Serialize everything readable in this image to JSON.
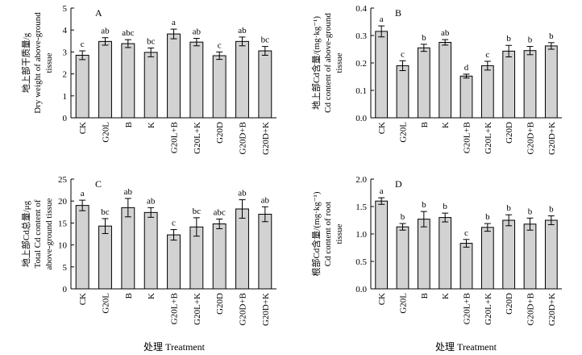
{
  "chart_data": [
    {
      "type": "bar",
      "panel": "A",
      "categories": [
        "CK",
        "G20L",
        "B",
        "K",
        "G20L+B",
        "G20L+K",
        "G20D",
        "G20D+B",
        "G20D+K"
      ],
      "values": [
        2.85,
        3.48,
        3.38,
        2.98,
        3.82,
        3.45,
        2.83,
        3.48,
        3.05
      ],
      "errors": [
        0.2,
        0.17,
        0.18,
        0.2,
        0.22,
        0.17,
        0.17,
        0.2,
        0.2
      ],
      "significance": [
        "c",
        "ab",
        "abc",
        "bc",
        "a",
        "ab",
        "c",
        "ab",
        "bc"
      ],
      "ylabel_lines": [
        "地上部干质量/g",
        "Dry weight of above-ground",
        "tissue"
      ],
      "xlabel": "",
      "ylim": [
        0,
        5
      ],
      "yticks": [
        0,
        1,
        2,
        3,
        4,
        5
      ]
    },
    {
      "type": "bar",
      "panel": "B",
      "categories": [
        "CK",
        "G20L",
        "B",
        "K",
        "G20L+B",
        "G20L+K",
        "G20D",
        "G20D+B",
        "G20D+K"
      ],
      "values": [
        0.315,
        0.19,
        0.255,
        0.275,
        0.152,
        0.19,
        0.243,
        0.245,
        0.262
      ],
      "errors": [
        0.02,
        0.018,
        0.013,
        0.01,
        0.007,
        0.016,
        0.021,
        0.015,
        0.012
      ],
      "significance": [
        "a",
        "c",
        "b",
        "ab",
        "d",
        "c",
        "b",
        "b",
        "b"
      ],
      "ylabel_lines": [
        "地上部Cd含量/(mg·kg⁻¹)",
        "Cd content of above-ground",
        "tissue"
      ],
      "xlabel": "",
      "ylim": [
        0,
        0.4
      ],
      "yticks": [
        0,
        0.1,
        0.2,
        0.3,
        0.4
      ]
    },
    {
      "type": "bar",
      "panel": "C",
      "categories": [
        "CK",
        "G20L",
        "B",
        "K",
        "G20L+B",
        "G20L+K",
        "G20D",
        "G20D+B",
        "G20D+K"
      ],
      "values": [
        19.0,
        14.3,
        18.5,
        17.4,
        12.3,
        14.1,
        14.8,
        18.2,
        17.0
      ],
      "errors": [
        1.2,
        1.7,
        2.1,
        1.1,
        1.2,
        2.1,
        1.1,
        2.1,
        1.7
      ],
      "significance": [
        "a",
        "bc",
        "ab",
        "ab",
        "c",
        "bc",
        "abc",
        "ab",
        "ab"
      ],
      "ylabel_lines": [
        "地上部Cd总量/μg",
        "Total Cd content of",
        "above-ground tissue"
      ],
      "xlabel": "处理 Treatment",
      "ylim": [
        0,
        25
      ],
      "yticks": [
        0,
        5,
        10,
        15,
        20,
        25
      ]
    },
    {
      "type": "bar",
      "panel": "D",
      "categories": [
        "CK",
        "G20L",
        "B",
        "K",
        "G20L+B",
        "G20L+K",
        "G20D",
        "G20D+B",
        "G20D+K"
      ],
      "values": [
        1.6,
        1.13,
        1.27,
        1.3,
        0.83,
        1.12,
        1.25,
        1.18,
        1.25
      ],
      "errors": [
        0.06,
        0.06,
        0.14,
        0.08,
        0.07,
        0.07,
        0.1,
        0.11,
        0.08
      ],
      "significance": [
        "a",
        "b",
        "b",
        "b",
        "c",
        "b",
        "b",
        "b",
        "b"
      ],
      "ylabel_lines": [
        "根部Cd含量/(mg·kg⁻¹)",
        "Cd content of root",
        "tissue"
      ],
      "xlabel": "处理 Treatment",
      "ylim": [
        0,
        2.0
      ],
      "yticks": [
        0,
        0.5,
        1.0,
        1.5,
        2.0
      ]
    }
  ]
}
